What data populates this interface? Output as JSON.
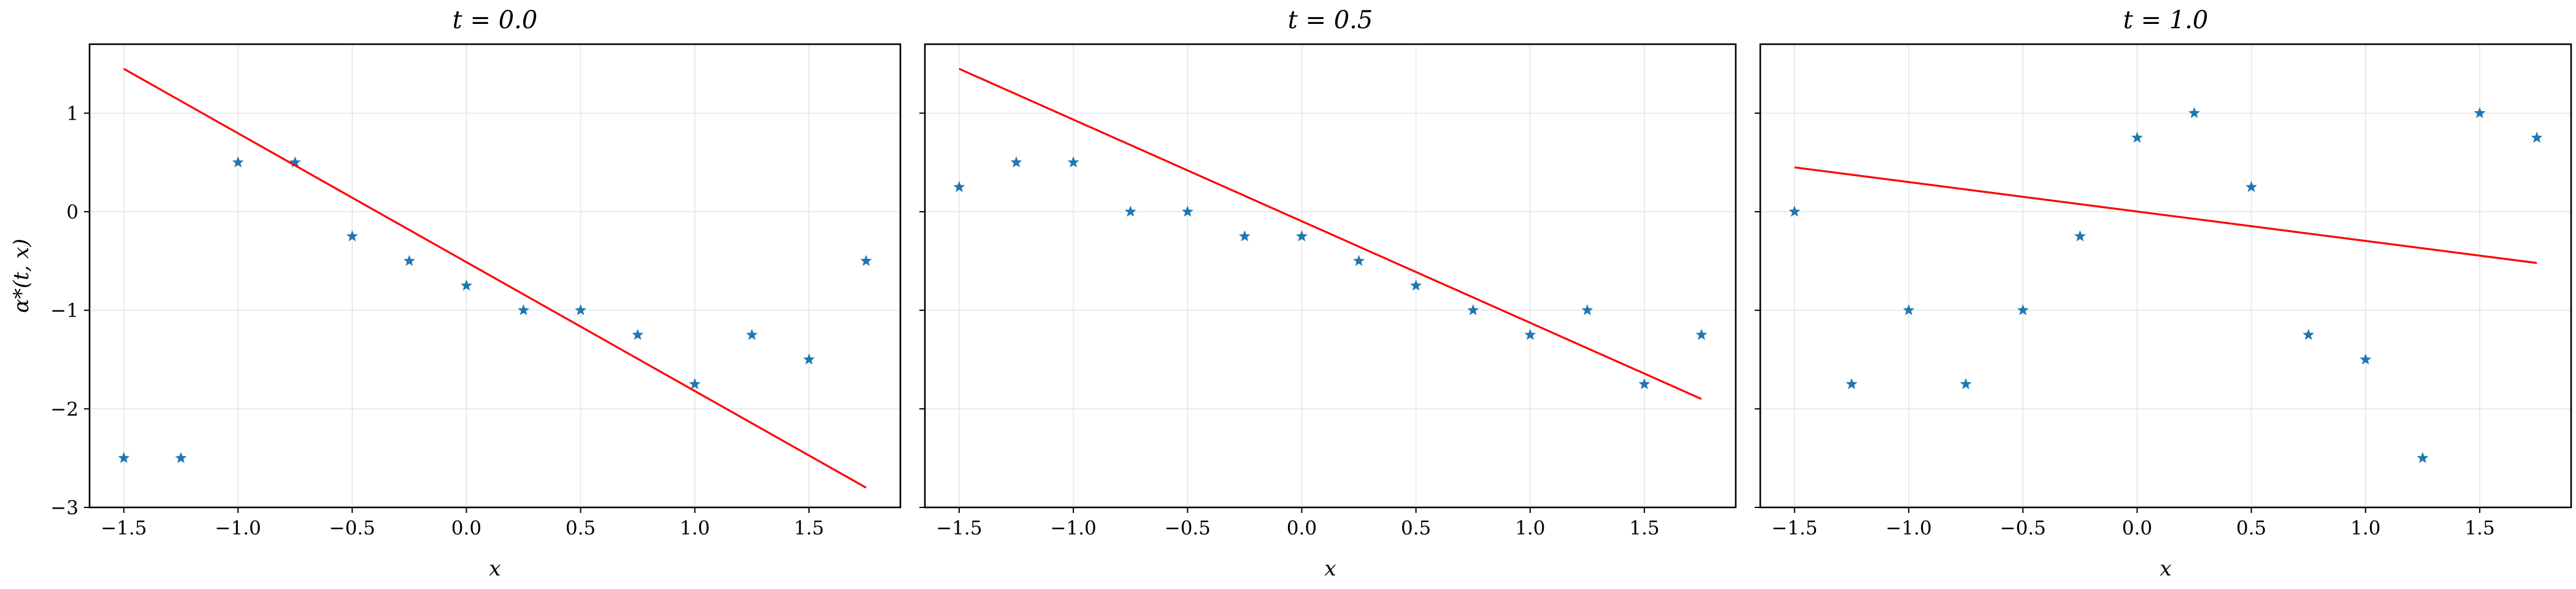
{
  "chart_data": [
    {
      "type": "scatter",
      "title": "t = 0.0",
      "xlabel": "x",
      "ylabel": "α*(t, x)",
      "xlim": [
        -1.65,
        1.9
      ],
      "ylim": [
        -3,
        1.7
      ],
      "xticks": [
        -1.5,
        -1.0,
        -0.5,
        0.0,
        0.5,
        1.0,
        1.5
      ],
      "xtick_labels": [
        "−1.5",
        "−1.0",
        "−0.5",
        "0.0",
        "0.5",
        "1.0",
        "1.5"
      ],
      "yticks": [
        1,
        0,
        -1,
        -2,
        -3
      ],
      "ytick_labels": [
        "1",
        "0",
        "−1",
        "−2",
        "−3"
      ],
      "grid": true,
      "series": [
        {
          "kind": "scatter",
          "marker": "star",
          "color": "#1f77b4",
          "x": [
            -1.5,
            -1.25,
            -1.0,
            -0.75,
            -0.5,
            -0.25,
            0.0,
            0.25,
            0.5,
            0.75,
            1.0,
            1.25,
            1.5,
            1.75
          ],
          "y": [
            -2.5,
            -2.5,
            0.5,
            0.5,
            -0.25,
            -0.5,
            -0.75,
            -1.0,
            -1.0,
            -1.25,
            -1.75,
            -1.25,
            -1.5,
            -0.5
          ]
        },
        {
          "kind": "line",
          "color": "#ff0000",
          "x": [
            -1.5,
            1.75
          ],
          "y": [
            1.45,
            -2.8
          ]
        }
      ]
    },
    {
      "type": "scatter",
      "title": "t = 0.5",
      "xlabel": "x",
      "ylabel": "",
      "xlim": [
        -1.65,
        1.9
      ],
      "ylim": [
        -3,
        1.7
      ],
      "xticks": [
        -1.5,
        -1.0,
        -0.5,
        0.0,
        0.5,
        1.0,
        1.5
      ],
      "xtick_labels": [
        "−1.5",
        "−1.0",
        "−0.5",
        "0.0",
        "0.5",
        "1.0",
        "1.5"
      ],
      "yticks": [
        1,
        0,
        -1,
        -2,
        -3
      ],
      "ytick_labels": [],
      "grid": true,
      "series": [
        {
          "kind": "scatter",
          "marker": "star",
          "color": "#1f77b4",
          "x": [
            -1.5,
            -1.25,
            -1.0,
            -0.75,
            -0.5,
            -0.25,
            0.0,
            0.25,
            0.5,
            0.75,
            1.0,
            1.25,
            1.5,
            1.75
          ],
          "y": [
            0.25,
            0.5,
            0.5,
            0.0,
            0.0,
            -0.25,
            -0.25,
            -0.5,
            -0.75,
            -1.0,
            -1.25,
            -1.0,
            -1.75,
            -1.25
          ]
        },
        {
          "kind": "line",
          "color": "#ff0000",
          "x": [
            -1.5,
            1.75
          ],
          "y": [
            1.45,
            -1.9
          ]
        }
      ]
    },
    {
      "type": "scatter",
      "title": "t = 1.0",
      "xlabel": "x",
      "ylabel": "",
      "xlim": [
        -1.65,
        1.9
      ],
      "ylim": [
        -3,
        1.7
      ],
      "xticks": [
        -1.5,
        -1.0,
        -0.5,
        0.0,
        0.5,
        1.0,
        1.5
      ],
      "xtick_labels": [
        "−1.5",
        "−1.0",
        "−0.5",
        "0.0",
        "0.5",
        "1.0",
        "1.5"
      ],
      "yticks": [
        1,
        0,
        -1,
        -2,
        -3
      ],
      "ytick_labels": [],
      "grid": true,
      "series": [
        {
          "kind": "scatter",
          "marker": "star",
          "color": "#1f77b4",
          "x": [
            -1.5,
            -1.25,
            -1.0,
            -0.75,
            -0.5,
            -0.25,
            0.0,
            0.25,
            0.5,
            0.75,
            1.0,
            1.25,
            1.5,
            1.75
          ],
          "y": [
            0.0,
            -1.75,
            -1.0,
            -1.75,
            -1.0,
            -0.25,
            0.75,
            1.0,
            0.25,
            -1.25,
            -1.5,
            -2.5,
            1.0,
            0.75
          ]
        },
        {
          "kind": "line",
          "color": "#ff0000",
          "x": [
            -1.5,
            1.75
          ],
          "y": [
            0.45,
            -0.52
          ]
        }
      ]
    }
  ]
}
